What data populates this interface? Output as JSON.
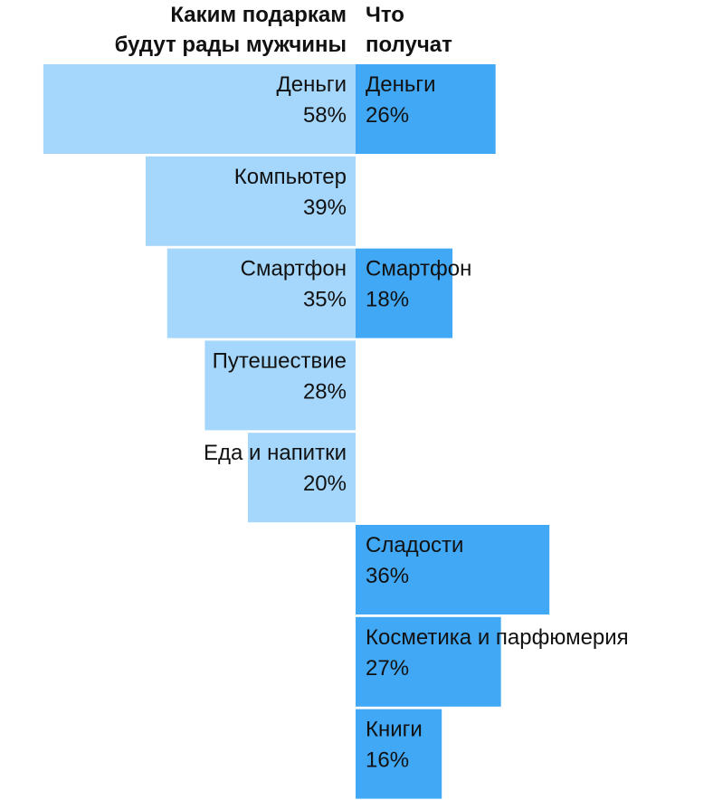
{
  "headers": {
    "left": [
      "Каким подаркам",
      "будут рады мужчины"
    ],
    "right": [
      "Что",
      "получат"
    ]
  },
  "colors": {
    "left_bar": "#a5d6fc",
    "right_bar": "#41a8f6",
    "text": "#111111"
  },
  "chart_data": {
    "type": "bar",
    "orientation": "horizontal-diverging",
    "categories": [
      "Деньги",
      "Компьютер",
      "Смартфон",
      "Путешествие",
      "Еда и напитки",
      "Сладости",
      "Косметика и парфюмерия",
      "Книги"
    ],
    "series": [
      {
        "name": "Каким подаркам будут рады мужчины",
        "side": "left",
        "values": [
          58,
          39,
          35,
          28,
          20,
          null,
          null,
          null
        ],
        "labels": [
          "58%",
          "39%",
          "35%",
          "28%",
          "20%",
          null,
          null,
          null
        ]
      },
      {
        "name": "Что получат",
        "side": "right",
        "values": [
          26,
          null,
          18,
          null,
          null,
          36,
          27,
          16
        ],
        "labels": [
          "26%",
          null,
          "18%",
          null,
          null,
          "36%",
          "27%",
          "16%"
        ]
      }
    ],
    "unit": "%"
  }
}
